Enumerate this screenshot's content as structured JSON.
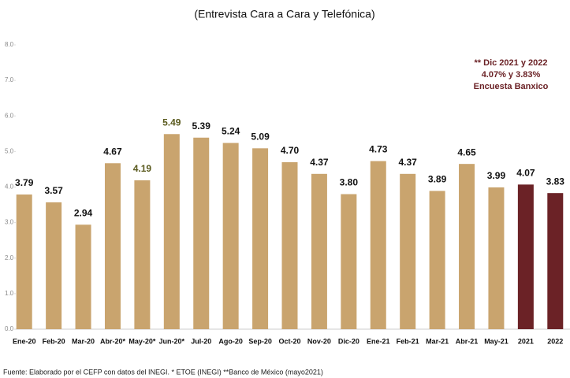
{
  "chart_data": {
    "type": "bar",
    "title": "(Entrevista Cara a Cara y Telefónica)",
    "annotation": [
      "** Dic 2021 y 2022",
      "4.07% y 3.83%",
      "Encuesta Banxico"
    ],
    "footnote": "Fuente: Elaborado por el CEFP con datos del INEGI. * ETOE (INEGI) **Banco de México (mayo2021)",
    "categories": [
      "Ene-20",
      "Feb-20",
      "Mar-20",
      "Abr-20*",
      "May-20*",
      "Jun-20*",
      "Jul-20",
      "Ago-20",
      "Sep-20",
      "Oct-20",
      "Nov-20",
      "Dic-20",
      "Ene-21",
      "Feb-21",
      "Mar-21",
      "Abr-21",
      "May-21",
      "2021",
      "2022"
    ],
    "values": [
      3.79,
      3.57,
      2.94,
      4.67,
      4.19,
      5.49,
      5.39,
      5.24,
      5.09,
      4.7,
      4.37,
      3.8,
      4.73,
      4.37,
      3.89,
      4.65,
      3.99,
      4.07,
      3.83
    ],
    "value_labels": [
      "3.79",
      "3.57",
      "2.94",
      "4.67",
      "4.19",
      "5.49",
      "5.39",
      "5.24",
      "5.09",
      "4.70",
      "4.37",
      "3.80",
      "4.73",
      "4.37",
      "3.89",
      "4.65",
      "3.99",
      "4.07",
      "3.83"
    ],
    "colors": [
      "#c9a46e",
      "#c9a46e",
      "#c9a46e",
      "#c9a46e",
      "#c9a46e",
      "#c9a46e",
      "#c9a46e",
      "#c9a46e",
      "#c9a46e",
      "#c9a46e",
      "#c9a46e",
      "#c9a46e",
      "#c9a46e",
      "#c9a46e",
      "#c9a46e",
      "#c9a46e",
      "#c9a46e",
      "#6b2226",
      "#6b2226"
    ],
    "label_colors": [
      "#111",
      "#111",
      "#111",
      "#111",
      "#5a5a1e",
      "#5a5a1e",
      "#111",
      "#111",
      "#111",
      "#111",
      "#111",
      "#111",
      "#111",
      "#111",
      "#111",
      "#111",
      "#111",
      "#111",
      "#111"
    ],
    "ylim": [
      0,
      8
    ],
    "yticks": [
      {
        "value": 0,
        "label": "0.0"
      },
      {
        "value": 1,
        "label": "1.0"
      },
      {
        "value": 2,
        "label": "2.0"
      },
      {
        "value": 3,
        "label": "3.0"
      },
      {
        "value": 4,
        "label": "4.0"
      },
      {
        "value": 5,
        "label": "5.0"
      },
      {
        "value": 6,
        "label": "6.0"
      },
      {
        "value": 7,
        "label": "7.0"
      },
      {
        "value": 8,
        "label": "8.0"
      }
    ],
    "grid": false
  }
}
